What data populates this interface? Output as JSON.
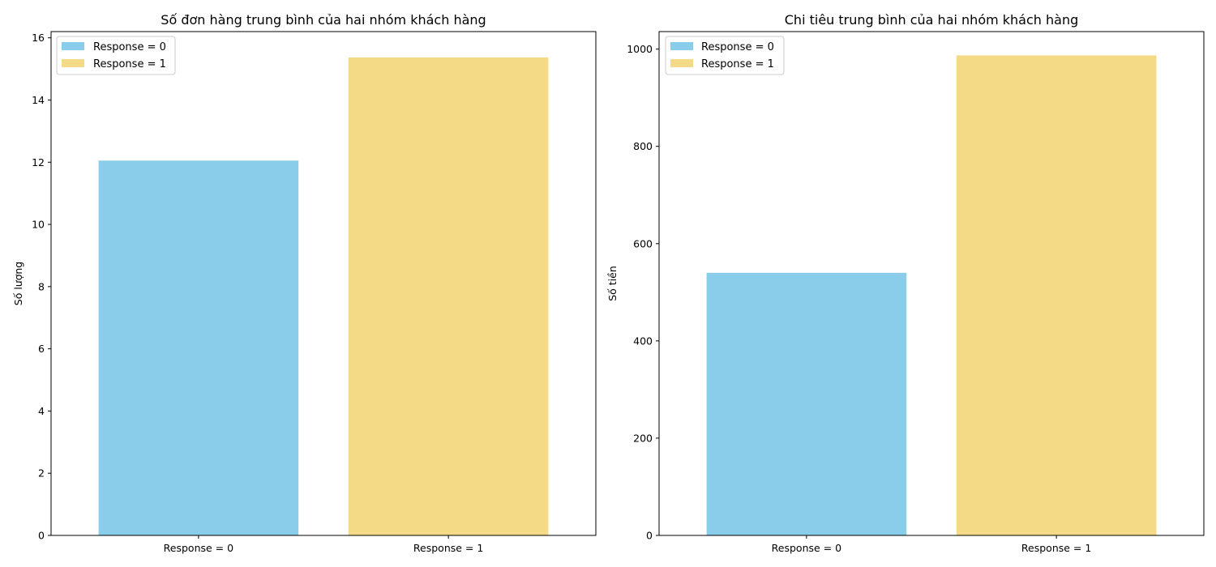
{
  "chart_data": [
    {
      "type": "bar",
      "title": "Số đơn hàng trung bình của hai nhóm khách hàng",
      "xlabel": "",
      "ylabel": "Số lượng",
      "categories": [
        "Response = 0",
        "Response = 1"
      ],
      "values": [
        12.05,
        15.37
      ],
      "colors": [
        "#89CDEA",
        "#F4D986"
      ],
      "ylim": [
        0,
        16.2
      ],
      "yticks": [
        0,
        2,
        4,
        6,
        8,
        10,
        12,
        14,
        16
      ],
      "legend": {
        "placement": "top-left",
        "entries": [
          "Response = 0",
          "Response = 1"
        ]
      },
      "grid": false
    },
    {
      "type": "bar",
      "title": "Chi tiêu trung bình của hai nhóm khách hàng",
      "xlabel": "",
      "ylabel": "Số tiền",
      "categories": [
        "Response = 0",
        "Response = 1"
      ],
      "values": [
        540,
        987
      ],
      "colors": [
        "#89CDEA",
        "#F4D986"
      ],
      "ylim": [
        0,
        1036
      ],
      "yticks": [
        0,
        200,
        400,
        600,
        800,
        1000
      ],
      "legend": {
        "placement": "top-left",
        "entries": [
          "Response = 0",
          "Response = 1"
        ]
      },
      "grid": false
    }
  ]
}
